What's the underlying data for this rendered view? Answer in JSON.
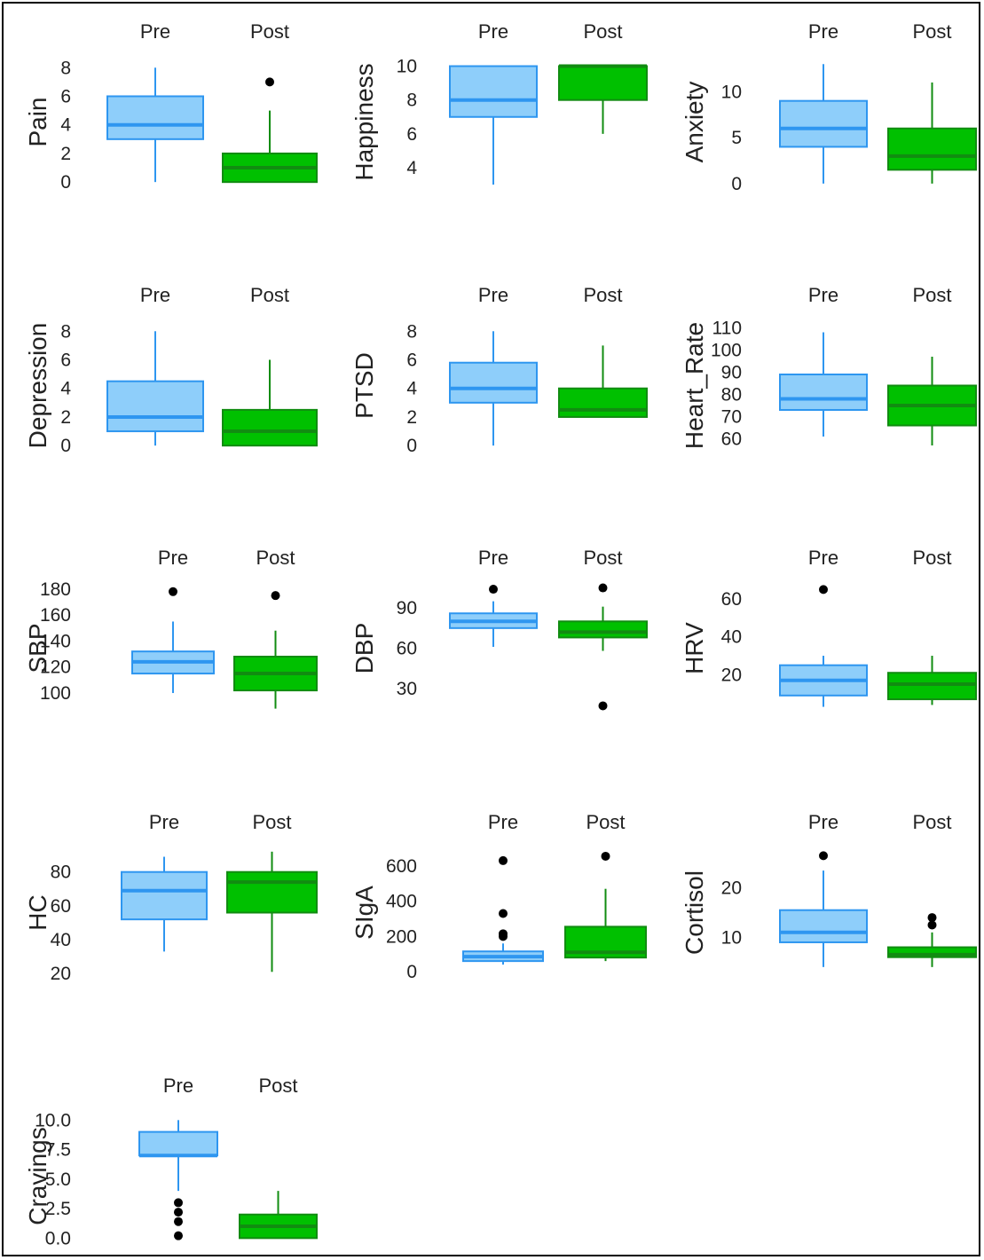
{
  "colors": {
    "pre_fill": "#8ECEFA",
    "pre_stroke": "#2E96F0",
    "post_fill": "#00C000",
    "post_stroke": "#118C11",
    "outlier": "#000000"
  },
  "chart_data": [
    {
      "type": "box",
      "ylabel": "Pain",
      "groups": [
        "Pre",
        "Post"
      ],
      "ylim": [
        -0.3,
        8.7
      ],
      "ticks": [
        0,
        2,
        4,
        6,
        8
      ],
      "boxes": [
        {
          "group": "Pre",
          "min": 0,
          "q1": 3,
          "median": 4,
          "q3": 6,
          "max": 8,
          "outliers": []
        },
        {
          "group": "Post",
          "min": 0,
          "q1": 0,
          "median": 1,
          "q3": 2,
          "max": 5,
          "outliers": [
            7
          ]
        }
      ]
    },
    {
      "type": "box",
      "ylabel": "Happiness",
      "groups": [
        "Pre",
        "Post"
      ],
      "ylim": [
        2.9,
        10.5
      ],
      "ticks": [
        4,
        6,
        8,
        10
      ],
      "boxes": [
        {
          "group": "Pre",
          "min": 3,
          "q1": 7,
          "median": 8,
          "q3": 10,
          "max": 10,
          "outliers": []
        },
        {
          "group": "Post",
          "min": 6,
          "q1": 8,
          "median": 10,
          "q3": 10,
          "max": 10,
          "outliers": []
        }
      ]
    },
    {
      "type": "box",
      "ylabel": "Anxiety",
      "groups": [
        "Pre",
        "Post"
      ],
      "ylim": [
        -0.3,
        13.7
      ],
      "ticks": [
        0,
        5,
        10
      ],
      "boxes": [
        {
          "group": "Pre",
          "min": 0,
          "q1": 4,
          "median": 6,
          "q3": 9,
          "max": 13,
          "outliers": []
        },
        {
          "group": "Post",
          "min": 0,
          "q1": 1.5,
          "median": 3,
          "q3": 6,
          "max": 11,
          "outliers": []
        }
      ]
    },
    {
      "type": "box",
      "ylabel": "Depression",
      "groups": [
        "Pre",
        "Post"
      ],
      "ylim": [
        -0.3,
        8.7
      ],
      "ticks": [
        0,
        2,
        4,
        6,
        8
      ],
      "boxes": [
        {
          "group": "Pre",
          "min": 0,
          "q1": 1,
          "median": 2,
          "q3": 4.5,
          "max": 8,
          "outliers": []
        },
        {
          "group": "Post",
          "min": 0,
          "q1": 0,
          "median": 1,
          "q3": 2.5,
          "max": 6,
          "outliers": []
        }
      ]
    },
    {
      "type": "box",
      "ylabel": "PTSD",
      "groups": [
        "Pre",
        "Post"
      ],
      "ylim": [
        -0.3,
        8.7
      ],
      "ticks": [
        0,
        2,
        4,
        6,
        8
      ],
      "boxes": [
        {
          "group": "Pre",
          "min": 0,
          "q1": 3,
          "median": 4,
          "q3": 5.8,
          "max": 8,
          "outliers": []
        },
        {
          "group": "Post",
          "min": 2,
          "q1": 2,
          "median": 2.5,
          "q3": 4,
          "max": 7,
          "outliers": []
        }
      ]
    },
    {
      "type": "box",
      "ylabel": "Heart_Rate",
      "groups": [
        "Pre",
        "Post"
      ],
      "ylim": [
        55,
        113
      ],
      "ticks": [
        60,
        70,
        80,
        90,
        100,
        110
      ],
      "boxes": [
        {
          "group": "Pre",
          "min": 61,
          "q1": 73,
          "median": 78,
          "q3": 89,
          "max": 108,
          "outliers": []
        },
        {
          "group": "Post",
          "min": 57,
          "q1": 66,
          "median": 75,
          "q3": 84,
          "max": 97,
          "outliers": []
        }
      ]
    },
    {
      "type": "box",
      "ylabel": "SBP",
      "groups": [
        "Pre",
        "Post"
      ],
      "ylim": [
        85,
        184
      ],
      "ticks": [
        100,
        120,
        140,
        160,
        180
      ],
      "boxes": [
        {
          "group": "Pre",
          "min": 100,
          "q1": 115,
          "median": 124,
          "q3": 132,
          "max": 155,
          "outliers": [
            178
          ]
        },
        {
          "group": "Post",
          "min": 88,
          "q1": 102,
          "median": 115,
          "q3": 128,
          "max": 148,
          "outliers": [
            175
          ]
        }
      ]
    },
    {
      "type": "box",
      "ylabel": "DBP",
      "groups": [
        "Pre",
        "Post"
      ],
      "ylim": [
        12,
        108
      ],
      "ticks": [
        30,
        60,
        90
      ],
      "boxes": [
        {
          "group": "Pre",
          "min": 61,
          "q1": 75,
          "median": 80,
          "q3": 86,
          "max": 95,
          "outliers": [
            104
          ]
        },
        {
          "group": "Post",
          "min": 58,
          "q1": 68,
          "median": 72,
          "q3": 80,
          "max": 91,
          "outliers": [
            105,
            17
          ]
        }
      ]
    },
    {
      "type": "box",
      "ylabel": "HRV",
      "groups": [
        "Pre",
        "Post"
      ],
      "ylim": [
        0,
        68
      ],
      "ticks": [
        20,
        40,
        60
      ],
      "boxes": [
        {
          "group": "Pre",
          "min": 3,
          "q1": 9,
          "median": 17,
          "q3": 25,
          "max": 30,
          "outliers": [
            65
          ]
        },
        {
          "group": "Post",
          "min": 4,
          "q1": 7,
          "median": 15,
          "q3": 21,
          "max": 30,
          "outliers": []
        }
      ]
    },
    {
      "type": "box",
      "ylabel": "HC",
      "groups": [
        "Pre",
        "Post"
      ],
      "ylim": [
        18,
        94
      ],
      "ticks": [
        20,
        40,
        60,
        80
      ],
      "boxes": [
        {
          "group": "Pre",
          "min": 33,
          "q1": 52,
          "median": 69,
          "q3": 80,
          "max": 89,
          "outliers": []
        },
        {
          "group": "Post",
          "min": 21,
          "q1": 56,
          "median": 74,
          "q3": 80,
          "max": 92,
          "outliers": []
        }
      ]
    },
    {
      "type": "box",
      "ylabel": "SIgA",
      "groups": [
        "Pre",
        "Post"
      ],
      "ylim": [
        -30,
        700
      ],
      "ticks": [
        0,
        200,
        400,
        600
      ],
      "boxes": [
        {
          "group": "Pre",
          "min": 40,
          "q1": 60,
          "median": 85,
          "q3": 115,
          "max": 160,
          "outliers": [
            630,
            330,
            215,
            200
          ]
        },
        {
          "group": "Post",
          "min": 60,
          "q1": 80,
          "median": 110,
          "q3": 255,
          "max": 470,
          "outliers": [
            655
          ]
        }
      ]
    },
    {
      "type": "box",
      "ylabel": "Cortisol",
      "groups": [
        "Pre",
        "Post"
      ],
      "ylim": [
        2,
        28
      ],
      "ticks": [
        10,
        20
      ],
      "boxes": [
        {
          "group": "Pre",
          "min": 4,
          "q1": 9,
          "median": 11,
          "q3": 15.5,
          "max": 23.5,
          "outliers": [
            26.5
          ]
        },
        {
          "group": "Post",
          "min": 4,
          "q1": 6,
          "median": 6.5,
          "q3": 8,
          "max": 11,
          "outliers": [
            14,
            12.5
          ]
        }
      ]
    },
    {
      "type": "box",
      "ylabel": "Cravings",
      "groups": [
        "Pre",
        "Post"
      ],
      "ylim": [
        -0.2,
        10.7
      ],
      "ticks": [
        "0.0",
        "2.5",
        "5.0",
        "7.5",
        "10.0"
      ],
      "boxes": [
        {
          "group": "Pre",
          "min": 4,
          "q1": 7,
          "median": 7,
          "q3": 9,
          "max": 10,
          "outliers": [
            3,
            2.2,
            1.4,
            0.2
          ]
        },
        {
          "group": "Post",
          "min": 0,
          "q1": 0,
          "median": 1,
          "q3": 2,
          "max": 4,
          "outliers": []
        }
      ]
    }
  ]
}
